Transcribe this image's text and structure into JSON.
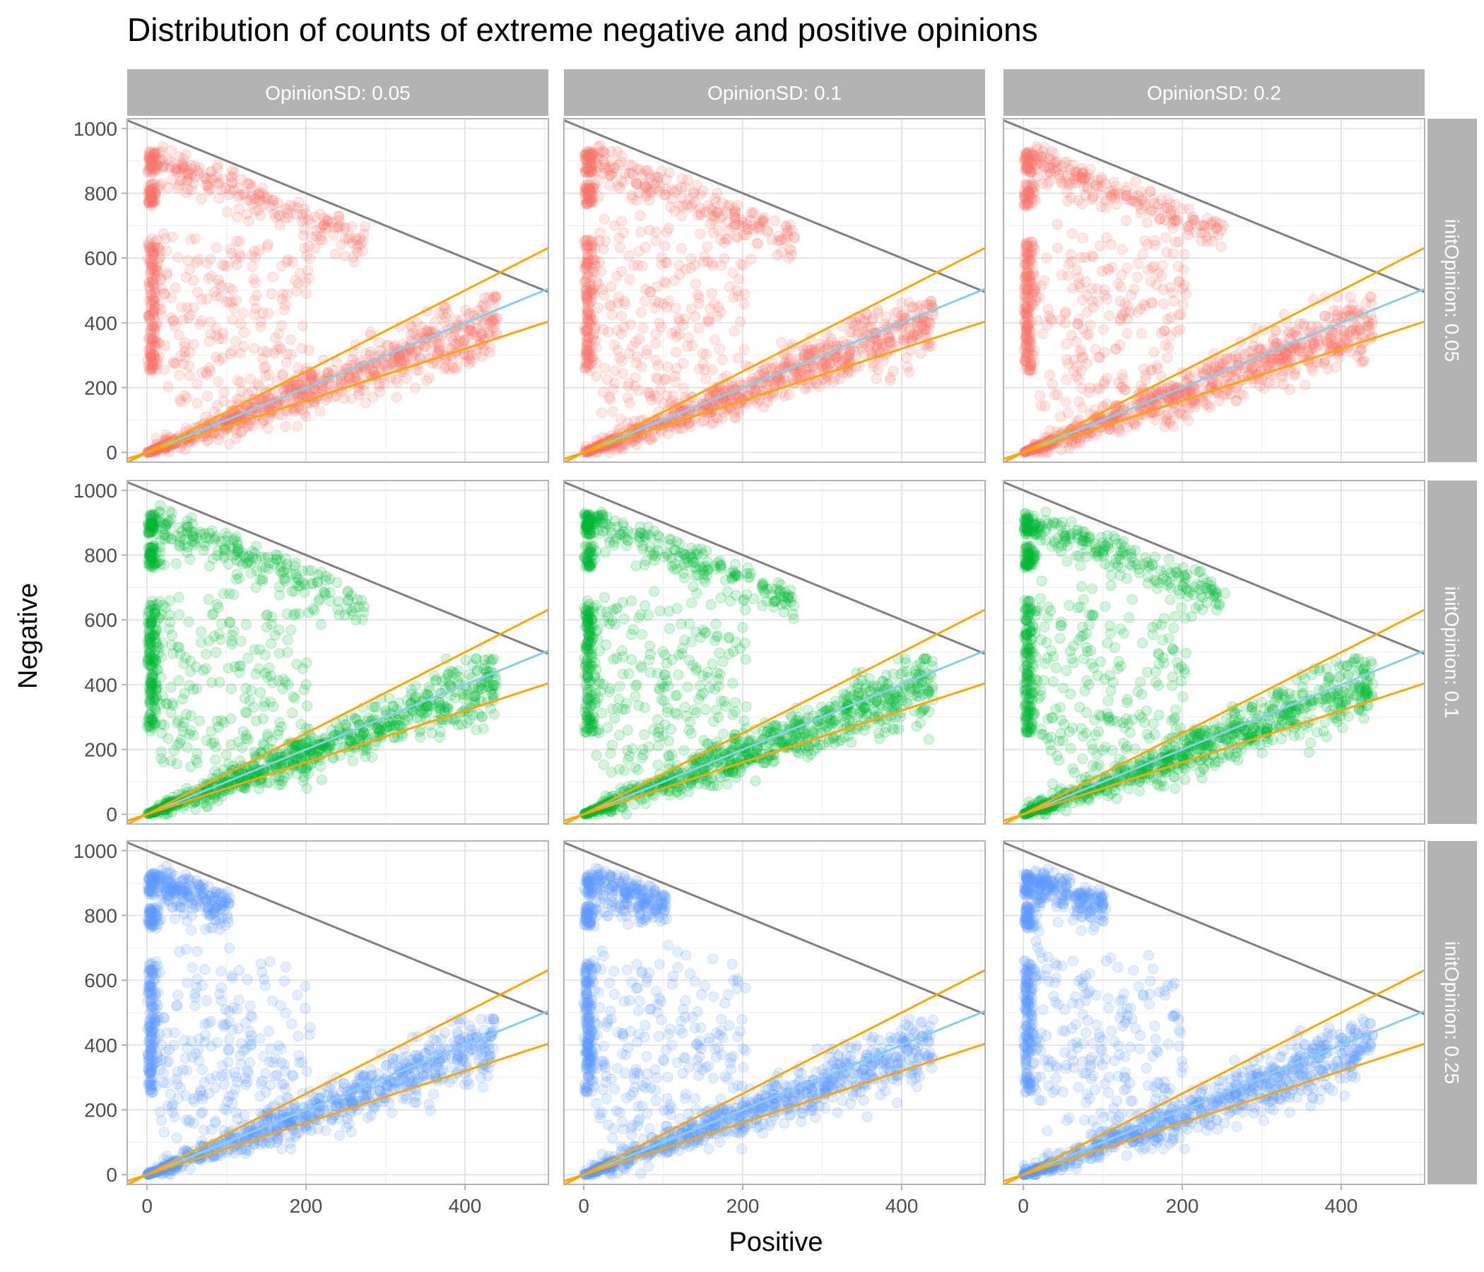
{
  "chart_data": {
    "type": "scatter",
    "title": "Distribution of counts of extreme negative and positive opinions",
    "xlabel": "Positive",
    "ylabel": "Negative",
    "xlim": [
      -25,
      505
    ],
    "ylim": [
      -30,
      1030
    ],
    "x_ticks": [
      0,
      200,
      400
    ],
    "y_ticks": [
      0,
      200,
      400,
      600,
      800,
      1000
    ],
    "grid": true,
    "columns": {
      "facet_variable": "OpinionSD",
      "labels": [
        "OpinionSD: 0.05",
        "OpinionSD: 0.1",
        "OpinionSD: 0.2"
      ]
    },
    "rows": {
      "facet_variable": "initOpinion",
      "labels": [
        "initOpinion: 0.05",
        "initOpinion: 0.1",
        "initOpinion: 0.25"
      ],
      "colors": [
        "#F8766D",
        "#00BA38",
        "#619CFF"
      ]
    },
    "reference_lines": [
      {
        "color": "#808080",
        "x": [
          -25,
          505
        ],
        "y": [
          1025,
          495
        ]
      },
      {
        "color": "#87CEEB",
        "x": [
          0,
          505
        ],
        "y": [
          0,
          505
        ]
      },
      {
        "color": "#FFA500",
        "x": [
          -25,
          505
        ],
        "y": [
          -31.25,
          631.25
        ]
      },
      {
        "color": "#FFA500",
        "x": [
          -25,
          505
        ],
        "y": [
          -20,
          404
        ]
      }
    ],
    "point_style": {
      "opacity": 0.17,
      "shape": "circle"
    },
    "point_clusters": [
      {
        "description": "vertical band at Positive≈0",
        "x": [
          0,
          20
        ],
        "y": [
          250,
          650
        ]
      },
      {
        "description": "vertical band at Positive≈0",
        "x": [
          0,
          20
        ],
        "y": [
          750,
          920
        ]
      },
      {
        "description": "upper diagonal band along Negative≈1000−Positive",
        "x": [
          20,
          250
        ],
        "y": [
          780,
          960
        ]
      },
      {
        "description": "lower diagonal band along Negative≈Positive",
        "x": [
          0,
          450
        ],
        "y": [
          0,
          460
        ]
      },
      {
        "description": "scattered intermediate points",
        "x": [
          20,
          200
        ],
        "y": [
          150,
          700
        ]
      }
    ]
  }
}
